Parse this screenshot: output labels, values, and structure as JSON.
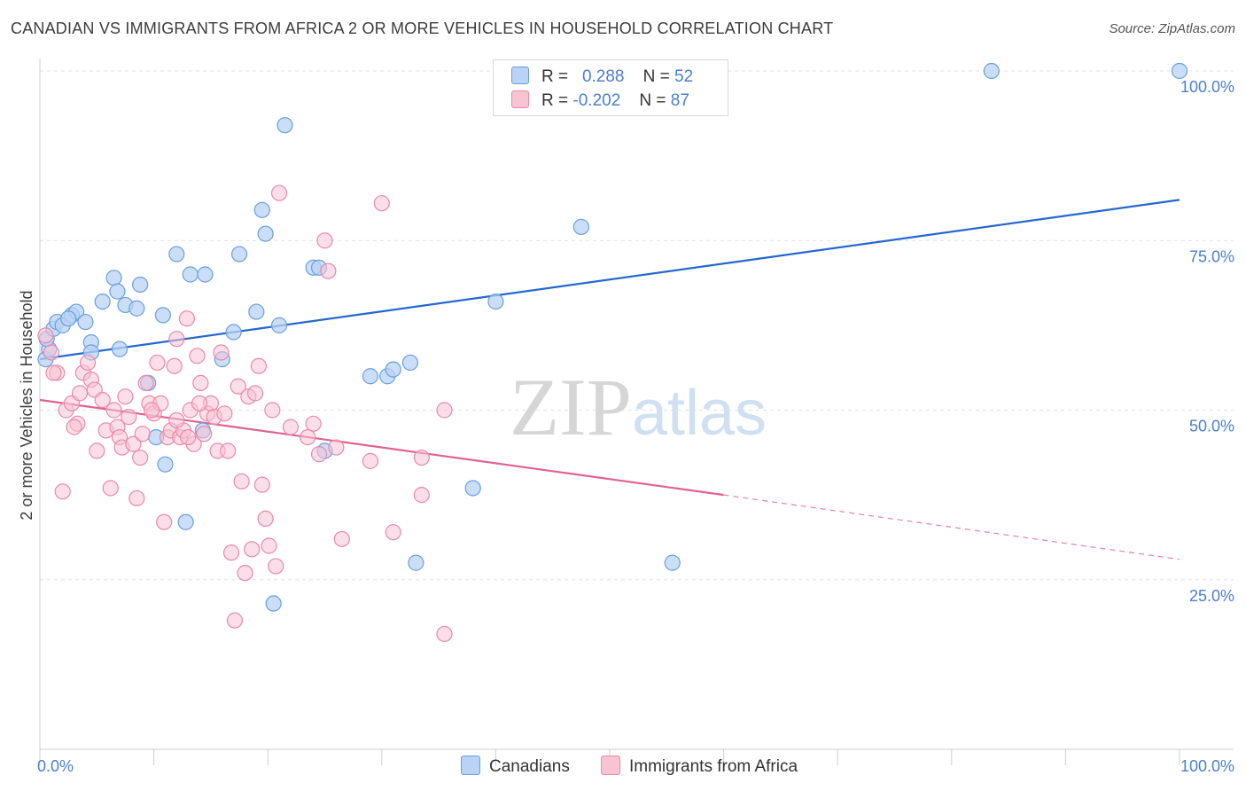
{
  "title": "CANADIAN VS IMMIGRANTS FROM AFRICA 2 OR MORE VEHICLES IN HOUSEHOLD CORRELATION CHART",
  "source": "Source: ZipAtlas.com",
  "watermark": "ZIPatlas",
  "legend": {
    "series1": {
      "r_label": "R =",
      "r_value": "0.288",
      "n_label": "N =",
      "n_value": "52"
    },
    "series2": {
      "r_label": "R =",
      "r_value": "-0.202",
      "n_label": "N =",
      "n_value": "87"
    }
  },
  "bottom_legend": {
    "series1": "Canadians",
    "series2": "Immigrants from Africa"
  },
  "colors": {
    "blue_fill": "#b8d3f5",
    "blue_stroke": "#6a9fe0",
    "blue_line": "#2468cf",
    "pink_fill": "#f8c3d3",
    "pink_stroke": "#e98aaa",
    "pink_line": "#e0628f",
    "tick_text": "#4a7fcf",
    "grid": "#e2e2e2"
  },
  "chart_data": {
    "type": "scatter",
    "title": "CANADIAN VS IMMIGRANTS FROM AFRICA 2 OR MORE VEHICLES IN HOUSEHOLD CORRELATION CHART",
    "xlabel": "",
    "ylabel": "2 or more Vehicles in Household",
    "xlim": [
      0,
      100
    ],
    "ylim": [
      0,
      105
    ],
    "x_tick_labels": [
      "0.0%",
      "100.0%"
    ],
    "y_tick_values": [
      25,
      50,
      75,
      100
    ],
    "y_tick_labels": [
      "25.0%",
      "50.0%",
      "75.0%",
      "100.0%"
    ],
    "grid": true,
    "legend_position": "top-center",
    "series": [
      {
        "name": "Canadians",
        "r": 0.288,
        "n": 52,
        "trend": {
          "x": [
            0,
            100
          ],
          "y": [
            57.5,
            81
          ]
        },
        "points": [
          [
            0.5,
            57.5
          ],
          [
            0.8,
            59
          ],
          [
            0.6,
            60.5
          ],
          [
            1.2,
            62
          ],
          [
            1.5,
            63
          ],
          [
            2.0,
            62.5
          ],
          [
            2.8,
            64
          ],
          [
            3.2,
            64.5
          ],
          [
            4.0,
            63
          ],
          [
            4.5,
            60
          ],
          [
            5.5,
            66
          ],
          [
            6.5,
            69.5
          ],
          [
            6.8,
            67.5
          ],
          [
            7.5,
            65.5
          ],
          [
            8.5,
            65
          ],
          [
            8.8,
            68.5
          ],
          [
            7.0,
            59
          ],
          [
            10.8,
            64
          ],
          [
            12.0,
            73
          ],
          [
            13.2,
            70
          ],
          [
            14.5,
            70
          ],
          [
            9.5,
            54
          ],
          [
            10.2,
            46
          ],
          [
            11.0,
            42
          ],
          [
            12.8,
            33.5
          ],
          [
            14.3,
            47
          ],
          [
            16.0,
            57.5
          ],
          [
            17.0,
            61.5
          ],
          [
            17.5,
            73
          ],
          [
            19.0,
            64.5
          ],
          [
            19.5,
            79.5
          ],
          [
            19.8,
            76
          ],
          [
            21.0,
            62.5
          ],
          [
            21.5,
            92
          ],
          [
            24.0,
            71
          ],
          [
            24.5,
            71
          ],
          [
            20.5,
            21.5
          ],
          [
            25.0,
            44
          ],
          [
            29.0,
            55
          ],
          [
            30.5,
            55
          ],
          [
            31.0,
            56
          ],
          [
            32.5,
            57
          ],
          [
            33.0,
            27.5
          ],
          [
            38.0,
            38.5
          ],
          [
            40.0,
            66
          ],
          [
            47.5,
            77
          ],
          [
            55.5,
            27.5
          ],
          [
            56.0,
            100
          ],
          [
            83.5,
            100
          ],
          [
            100,
            100
          ],
          [
            4.5,
            58.5
          ],
          [
            2.5,
            63.5
          ]
        ]
      },
      {
        "name": "Immigrants from Africa",
        "r": -0.202,
        "n": 87,
        "trend": {
          "x": [
            0,
            60
          ],
          "y": [
            51.5,
            37.5
          ]
        },
        "trend_dashed": {
          "x": [
            60,
            100
          ],
          "y": [
            37.5,
            28
          ]
        },
        "points": [
          [
            0.5,
            61
          ],
          [
            1.0,
            58.5
          ],
          [
            1.5,
            55.5
          ],
          [
            2.0,
            38
          ],
          [
            2.3,
            50
          ],
          [
            2.8,
            51
          ],
          [
            3.3,
            48
          ],
          [
            3.5,
            52.5
          ],
          [
            3.8,
            55.5
          ],
          [
            4.2,
            57
          ],
          [
            4.5,
            54.5
          ],
          [
            4.8,
            53
          ],
          [
            5.0,
            44
          ],
          [
            5.5,
            51.5
          ],
          [
            5.8,
            47
          ],
          [
            6.2,
            38.5
          ],
          [
            6.5,
            50
          ],
          [
            6.8,
            47.5
          ],
          [
            7.0,
            46
          ],
          [
            7.2,
            44.5
          ],
          [
            7.5,
            52
          ],
          [
            7.8,
            49
          ],
          [
            8.2,
            45
          ],
          [
            8.5,
            37
          ],
          [
            8.8,
            43
          ],
          [
            9.0,
            46.5
          ],
          [
            9.3,
            54
          ],
          [
            9.6,
            51
          ],
          [
            10.0,
            49.5
          ],
          [
            10.3,
            57
          ],
          [
            10.6,
            51
          ],
          [
            10.9,
            33.5
          ],
          [
            11.2,
            46
          ],
          [
            11.5,
            47
          ],
          [
            11.8,
            56.5
          ],
          [
            12.0,
            60.5
          ],
          [
            12.3,
            46
          ],
          [
            12.6,
            47
          ],
          [
            12.9,
            63.5
          ],
          [
            13.2,
            50
          ],
          [
            13.5,
            45
          ],
          [
            13.8,
            58
          ],
          [
            14.1,
            54
          ],
          [
            14.4,
            46.5
          ],
          [
            14.7,
            49.5
          ],
          [
            15.0,
            51
          ],
          [
            15.3,
            49
          ],
          [
            15.6,
            44
          ],
          [
            15.9,
            58.5
          ],
          [
            16.2,
            49.5
          ],
          [
            16.5,
            44
          ],
          [
            16.8,
            29
          ],
          [
            17.1,
            19
          ],
          [
            17.4,
            53.5
          ],
          [
            17.7,
            39.5
          ],
          [
            18.0,
            26
          ],
          [
            18.3,
            52
          ],
          [
            18.6,
            29.5
          ],
          [
            18.9,
            52.5
          ],
          [
            19.2,
            56.5
          ],
          [
            19.5,
            39
          ],
          [
            19.8,
            34
          ],
          [
            20.1,
            30
          ],
          [
            20.4,
            50
          ],
          [
            20.7,
            27
          ],
          [
            21.0,
            82
          ],
          [
            22.0,
            47.5
          ],
          [
            23.5,
            46
          ],
          [
            24.0,
            48
          ],
          [
            24.5,
            43.5
          ],
          [
            25.0,
            75
          ],
          [
            25.3,
            70.5
          ],
          [
            26.0,
            44.5
          ],
          [
            26.5,
            31
          ],
          [
            29.0,
            42.5
          ],
          [
            30.0,
            80.5
          ],
          [
            31.0,
            32
          ],
          [
            33.5,
            43
          ],
          [
            33.5,
            37.5
          ],
          [
            35.5,
            17
          ],
          [
            35.5,
            50
          ],
          [
            1.2,
            55.5
          ],
          [
            3.0,
            47.5
          ],
          [
            9.8,
            50
          ],
          [
            12.0,
            48.5
          ],
          [
            13.0,
            46
          ],
          [
            14.0,
            51
          ]
        ]
      }
    ]
  }
}
